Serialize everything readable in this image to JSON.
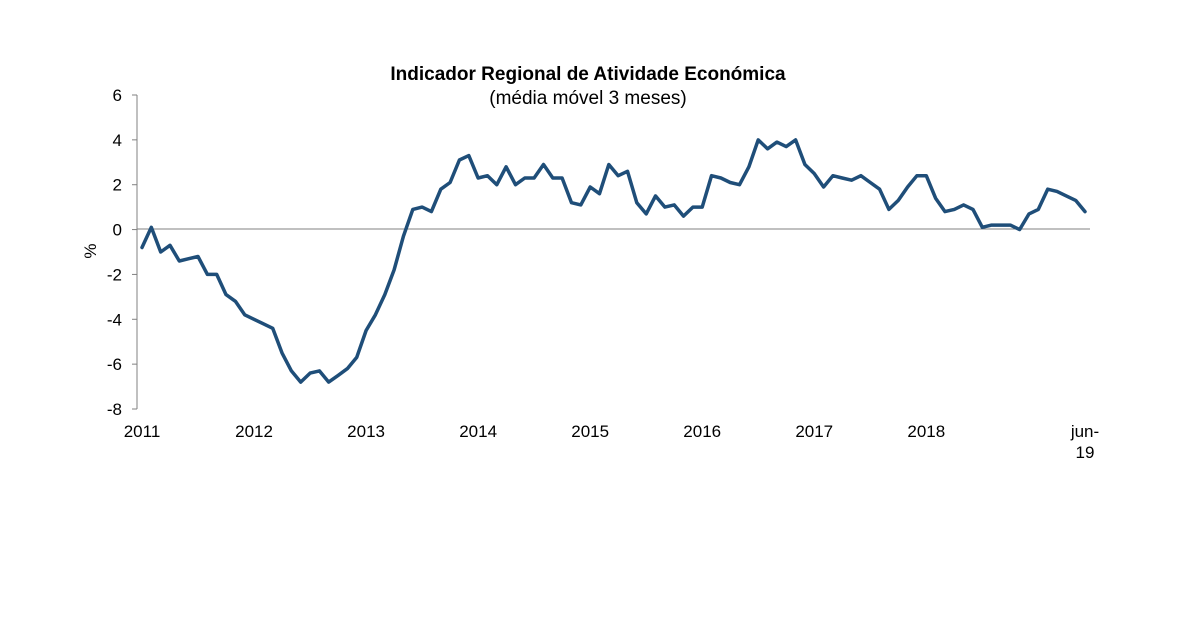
{
  "chart_data": {
    "type": "line",
    "title": "Indicador Regional de Atividade Económica",
    "subtitle": "(média móvel 3 meses)",
    "ylabel": "%",
    "xlabel": "",
    "ylim": [
      -8,
      6
    ],
    "yticks": [
      6,
      4,
      2,
      0,
      -2,
      -4,
      -6,
      -8
    ],
    "ytick_labels": [
      "6",
      "4",
      "2",
      "0",
      "-2",
      "-4",
      "-6",
      "-8"
    ],
    "xlim": [
      "2011-01",
      "2019-06"
    ],
    "xtick_labels": [
      {
        "date": "2011-01",
        "lines": [
          "2011"
        ]
      },
      {
        "date": "2012-01",
        "lines": [
          "2012"
        ]
      },
      {
        "date": "2013-01",
        "lines": [
          "2013"
        ]
      },
      {
        "date": "2014-01",
        "lines": [
          "2014"
        ]
      },
      {
        "date": "2015-01",
        "lines": [
          "2015"
        ]
      },
      {
        "date": "2016-01",
        "lines": [
          "2016"
        ]
      },
      {
        "date": "2017-01",
        "lines": [
          "2017"
        ]
      },
      {
        "date": "2018-01",
        "lines": [
          "2018"
        ]
      },
      {
        "date": "2019-06",
        "lines": [
          "jun-",
          "19"
        ]
      }
    ],
    "grid": false,
    "zero_line": true,
    "line_color": "#1F4E79",
    "series": [
      {
        "x": [
          "2011-01",
          "2011-02",
          "2011-03",
          "2011-04",
          "2011-05",
          "2011-06",
          "2011-07",
          "2011-08",
          "2011-09",
          "2011-10",
          "2011-11",
          "2011-12",
          "2012-01",
          "2012-02",
          "2012-03",
          "2012-04",
          "2012-05",
          "2012-06",
          "2012-07",
          "2012-08",
          "2012-09",
          "2012-10",
          "2012-11",
          "2012-12",
          "2013-01",
          "2013-02",
          "2013-03",
          "2013-04",
          "2013-05",
          "2013-06",
          "2013-07",
          "2013-08",
          "2013-09",
          "2013-10",
          "2013-11",
          "2013-12",
          "2014-01",
          "2014-02",
          "2014-03",
          "2014-04",
          "2014-05",
          "2014-06",
          "2014-07",
          "2014-08",
          "2014-09",
          "2014-10",
          "2014-11",
          "2014-12",
          "2015-01",
          "2015-02",
          "2015-03",
          "2015-04",
          "2015-05",
          "2015-06",
          "2015-07",
          "2015-08",
          "2015-09",
          "2015-10",
          "2015-11",
          "2015-12",
          "2016-01",
          "2016-02",
          "2016-03",
          "2016-04",
          "2016-05",
          "2016-06",
          "2016-07",
          "2016-08",
          "2016-09",
          "2016-10",
          "2016-11",
          "2016-12",
          "2017-01",
          "2017-02",
          "2017-03",
          "2017-04",
          "2017-05",
          "2017-06",
          "2017-07",
          "2017-08",
          "2017-09",
          "2017-10",
          "2017-11",
          "2017-12",
          "2018-01",
          "2018-02",
          "2018-03",
          "2018-04",
          "2018-05",
          "2018-06",
          "2018-07",
          "2018-08",
          "2018-09",
          "2018-10",
          "2018-11",
          "2018-12",
          "2019-01",
          "2019-02",
          "2019-03",
          "2019-04",
          "2019-05",
          "2019-06"
        ],
        "y": [
          -0.8,
          0.1,
          -1.0,
          -0.7,
          -1.4,
          -1.3,
          -1.2,
          -2.0,
          -2.0,
          -2.9,
          -3.2,
          -3.8,
          -4.0,
          -4.2,
          -4.4,
          -5.5,
          -6.3,
          -6.8,
          -6.4,
          -6.3,
          -6.8,
          -6.5,
          -6.2,
          -5.7,
          -4.5,
          -3.8,
          -2.9,
          -1.8,
          -0.3,
          0.9,
          1.0,
          0.8,
          1.8,
          2.1,
          3.1,
          3.3,
          2.3,
          2.4,
          2.0,
          2.8,
          2.0,
          2.3,
          2.3,
          2.9,
          2.3,
          2.3,
          1.2,
          1.1,
          1.9,
          1.6,
          2.9,
          2.4,
          2.6,
          1.2,
          0.7,
          1.5,
          1.0,
          1.1,
          0.6,
          1.0,
          1.0,
          2.4,
          2.3,
          2.1,
          2.0,
          2.8,
          4.0,
          3.6,
          3.9,
          3.7,
          4.0,
          2.9,
          2.5,
          1.9,
          2.4,
          2.3,
          2.2,
          2.4,
          2.1,
          1.8,
          0.9,
          1.3,
          1.9,
          2.4,
          2.4,
          1.4,
          0.8,
          0.9,
          1.1,
          0.9,
          0.1,
          0.2,
          0.2,
          0.2,
          0.0,
          0.7,
          0.9,
          1.8,
          1.7,
          1.5,
          1.3,
          0.8
        ]
      }
    ]
  }
}
